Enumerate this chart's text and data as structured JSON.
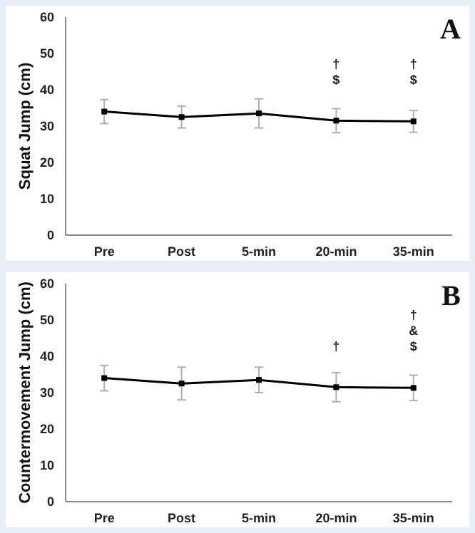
{
  "chart_data": [
    {
      "type": "line",
      "ylabel": "Squat Jump (cm)",
      "categories": [
        "Pre",
        "Post",
        "5-min",
        "20-min",
        "35-min"
      ],
      "series": [
        {
          "color": "#000000",
          "values": [
            34,
            32.5,
            33.5,
            31.5,
            31.3
          ],
          "errors": [
            3.3,
            3,
            4,
            3.3,
            3
          ]
        }
      ],
      "ylim": [
        0,
        60
      ],
      "yticks": [
        0,
        10,
        20,
        30,
        40,
        50,
        60
      ],
      "marker": "square",
      "line_style": "solid",
      "annotations": [
        "A",
        "†\n$",
        "†\n$"
      ]
    },
    {
      "type": "line",
      "ylabel": "Countermovement Jump (cm)",
      "categories": [
        "Pre",
        "Post",
        "5-min",
        "20-min",
        "35-min"
      ],
      "series": [
        {
          "color": "#000000",
          "values": [
            34,
            32.5,
            33.5,
            31.5,
            31.3
          ],
          "errors": [
            3.5,
            4.5,
            3.5,
            4,
            3.5
          ]
        }
      ],
      "ylim": [
        0,
        60
      ],
      "yticks": [
        0,
        10,
        20,
        30,
        40,
        50,
        60
      ],
      "marker": "square",
      "line_style": "solid",
      "annotations": [
        "B",
        "†",
        "†\n&\n$"
      ]
    }
  ]
}
